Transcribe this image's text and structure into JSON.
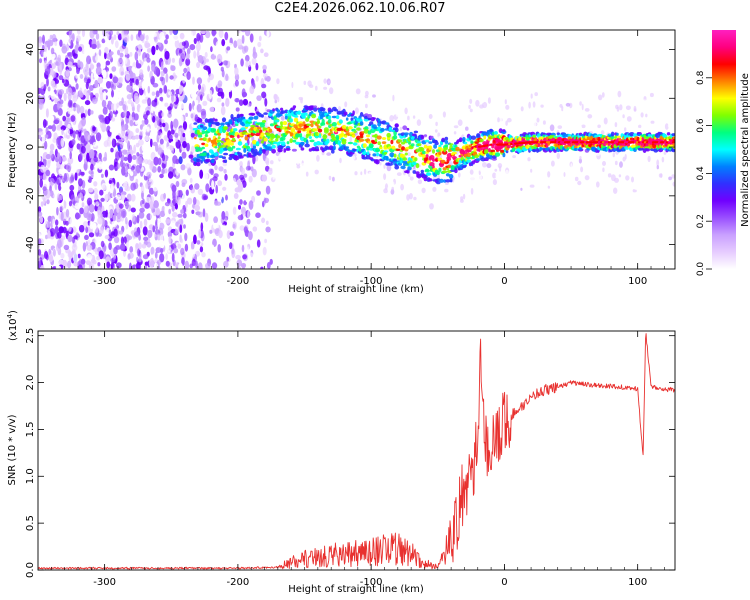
{
  "title": "C2E4.2026.062.10.06.R07",
  "chart_data": [
    {
      "type": "heatmap",
      "xlabel": "Height of straight line (km)",
      "ylabel": "Frequency (Hz)",
      "xlim": [
        -350,
        128
      ],
      "ylim": [
        -50,
        48
      ],
      "xticks": [
        -300,
        -200,
        -100,
        0,
        100
      ],
      "yticks": [
        -40,
        -20,
        0,
        20,
        40
      ],
      "colorbar": {
        "label": "Normalized spectral amplitude",
        "range": [
          0,
          1
        ],
        "ticks": [
          "0.0",
          "0.2",
          "0.4",
          "0.6",
          "0.8"
        ],
        "colors": [
          "#ffffff",
          "#e6ccff",
          "#c9a0ff",
          "#9a50ff",
          "#7000ff",
          "#3030ff",
          "#0080ff",
          "#00ffff",
          "#00ff80",
          "#80ff00",
          "#ffff00",
          "#ff8000",
          "#ff0000",
          "#ff0080",
          "#ff20c0"
        ]
      },
      "ridge": {
        "x": [
          -230,
          -210,
          -190,
          -170,
          -150,
          -130,
          -110,
          -90,
          -75,
          -60,
          -50,
          -40,
          -30,
          -20,
          -10,
          0,
          20,
          40,
          60,
          80,
          100,
          128
        ],
        "y": [
          2,
          3,
          5,
          7,
          8,
          7,
          5,
          2,
          -1,
          -4,
          -6,
          -5,
          -2,
          0,
          1,
          1,
          2,
          2,
          2,
          2,
          2,
          2
        ]
      }
    },
    {
      "type": "line",
      "xlabel": "Height of straight line (km)",
      "ylabel": "SNR (10 * v/v)",
      "yscale_label": "(x10",
      "yscale_exp": "4",
      "yscale_close": ")",
      "xlim": [
        -350,
        128
      ],
      "ylim": [
        0,
        2.55
      ],
      "xticks": [
        -300,
        -200,
        -100,
        0,
        100
      ],
      "yticks": [
        "0.0",
        "0.5",
        "1.0",
        "1.5",
        "2.0",
        "2.5"
      ],
      "series": [
        {
          "name": "SNR",
          "color": "#e8312f",
          "x": [
            -350,
            -300,
            -200,
            -170,
            -160,
            -150,
            -140,
            -130,
            -120,
            -110,
            -100,
            -90,
            -80,
            -70,
            -60,
            -50,
            -45,
            -40,
            -35,
            -30,
            -25,
            -20,
            -18,
            -15,
            -10,
            -5,
            0,
            10,
            20,
            30,
            40,
            50,
            60,
            70,
            80,
            90,
            100,
            104,
            106,
            110,
            120,
            128
          ],
          "y": [
            0.02,
            0.02,
            0.02,
            0.03,
            0.08,
            0.12,
            0.14,
            0.16,
            0.16,
            0.18,
            0.2,
            0.22,
            0.22,
            0.18,
            0.07,
            0.03,
            0.15,
            0.35,
            0.6,
            0.85,
            1.1,
            1.3,
            2.55,
            1.35,
            1.3,
            1.4,
            1.6,
            1.7,
            1.85,
            1.92,
            1.95,
            2.0,
            1.98,
            1.97,
            1.96,
            1.95,
            1.93,
            1.2,
            2.55,
            1.95,
            1.93,
            1.92
          ]
        }
      ]
    }
  ]
}
